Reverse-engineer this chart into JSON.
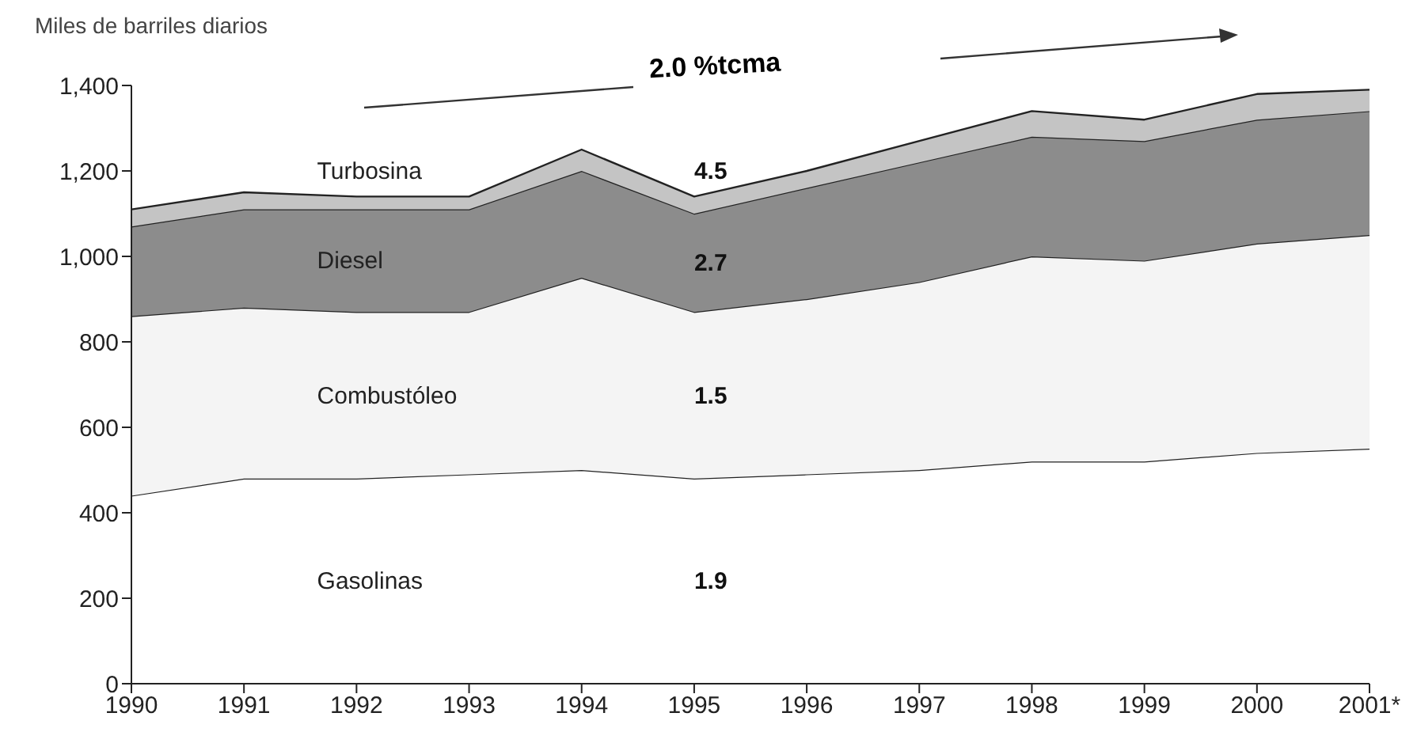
{
  "chart_data": {
    "type": "area",
    "stacked": true,
    "ylabel": "Miles de barriles diarios",
    "categories": [
      "1990",
      "1991",
      "1992",
      "1993",
      "1994",
      "1995",
      "1996",
      "1997",
      "1998",
      "1999",
      "2000",
      "2001*"
    ],
    "series": [
      {
        "name": "Gasolinas",
        "color": "#ffffff",
        "values": [
          440,
          480,
          480,
          490,
          500,
          480,
          490,
          500,
          520,
          520,
          540,
          550
        ]
      },
      {
        "name": "Combustóleo",
        "color": "#f4f4f4",
        "values": [
          420,
          400,
          390,
          380,
          450,
          390,
          410,
          440,
          480,
          470,
          490,
          500
        ]
      },
      {
        "name": "Diesel",
        "color": "#8c8c8c",
        "values": [
          210,
          230,
          240,
          240,
          250,
          230,
          260,
          280,
          280,
          280,
          290,
          290
        ]
      },
      {
        "name": "Turbosina",
        "color": "#c4c4c4",
        "values": [
          40,
          40,
          30,
          30,
          50,
          40,
          40,
          50,
          60,
          50,
          60,
          50
        ]
      }
    ],
    "annotations": [
      "2.0 %tcma",
      "1.9",
      "1.5",
      "2.7",
      "4.5"
    ],
    "ylim": [
      0,
      1400
    ],
    "yticks": [
      0,
      200,
      400,
      600,
      800,
      {
        "value": 1000,
        "label": "1,000"
      },
      {
        "value": 1200,
        "label": "1,200"
      },
      {
        "value": 1400,
        "label": "1,400"
      }
    ],
    "legend": false,
    "grid": false
  }
}
